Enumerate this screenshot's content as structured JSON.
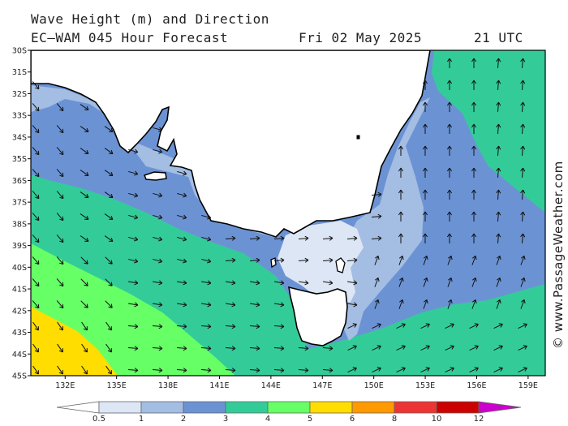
{
  "header": {
    "title": "Wave Height (m) and Direction",
    "model": "EC—WAM 045 Hour Forecast",
    "date": "Fri 02 May 2025",
    "time": "21 UTC"
  },
  "credit": "© www.PassageWeather.com",
  "map": {
    "lat_labels": [
      "30S",
      "31S",
      "32S",
      "33S",
      "34S",
      "35S",
      "36S",
      "37S",
      "38S",
      "39S",
      "40S",
      "41S",
      "42S",
      "43S",
      "44S",
      "45S"
    ],
    "lon_labels": [
      "132E",
      "135E",
      "138E",
      "141E",
      "144E",
      "147E",
      "150E",
      "153E",
      "156E",
      "159E"
    ],
    "lat_range": [
      -45,
      -30
    ],
    "lon_range": [
      130,
      160
    ],
    "land_color": "#ffffff",
    "coast_color": "#000000"
  },
  "legend": {
    "unit": "m",
    "labels": [
      "0.5",
      "1",
      "2",
      "3",
      "4",
      "5",
      "6",
      "8",
      "10",
      "12"
    ],
    "bins": [
      {
        "range": "<0.5",
        "color": "#ffffff"
      },
      {
        "range": "0.5-1",
        "color": "#dde6f5"
      },
      {
        "range": "1-2",
        "color": "#a3bde3"
      },
      {
        "range": "2-3",
        "color": "#6b93d4"
      },
      {
        "range": "3-4",
        "color": "#33cc99"
      },
      {
        "range": "4-5",
        "color": "#66ff66"
      },
      {
        "range": "5-6",
        "color": "#ffdd00"
      },
      {
        "range": "6-8",
        "color": "#ff9900"
      },
      {
        "range": "8-10",
        "color": "#ee3333"
      },
      {
        "range": "10-12",
        "color": "#cc0000"
      },
      {
        "range": ">12",
        "color": "#cc00cc"
      }
    ]
  }
}
